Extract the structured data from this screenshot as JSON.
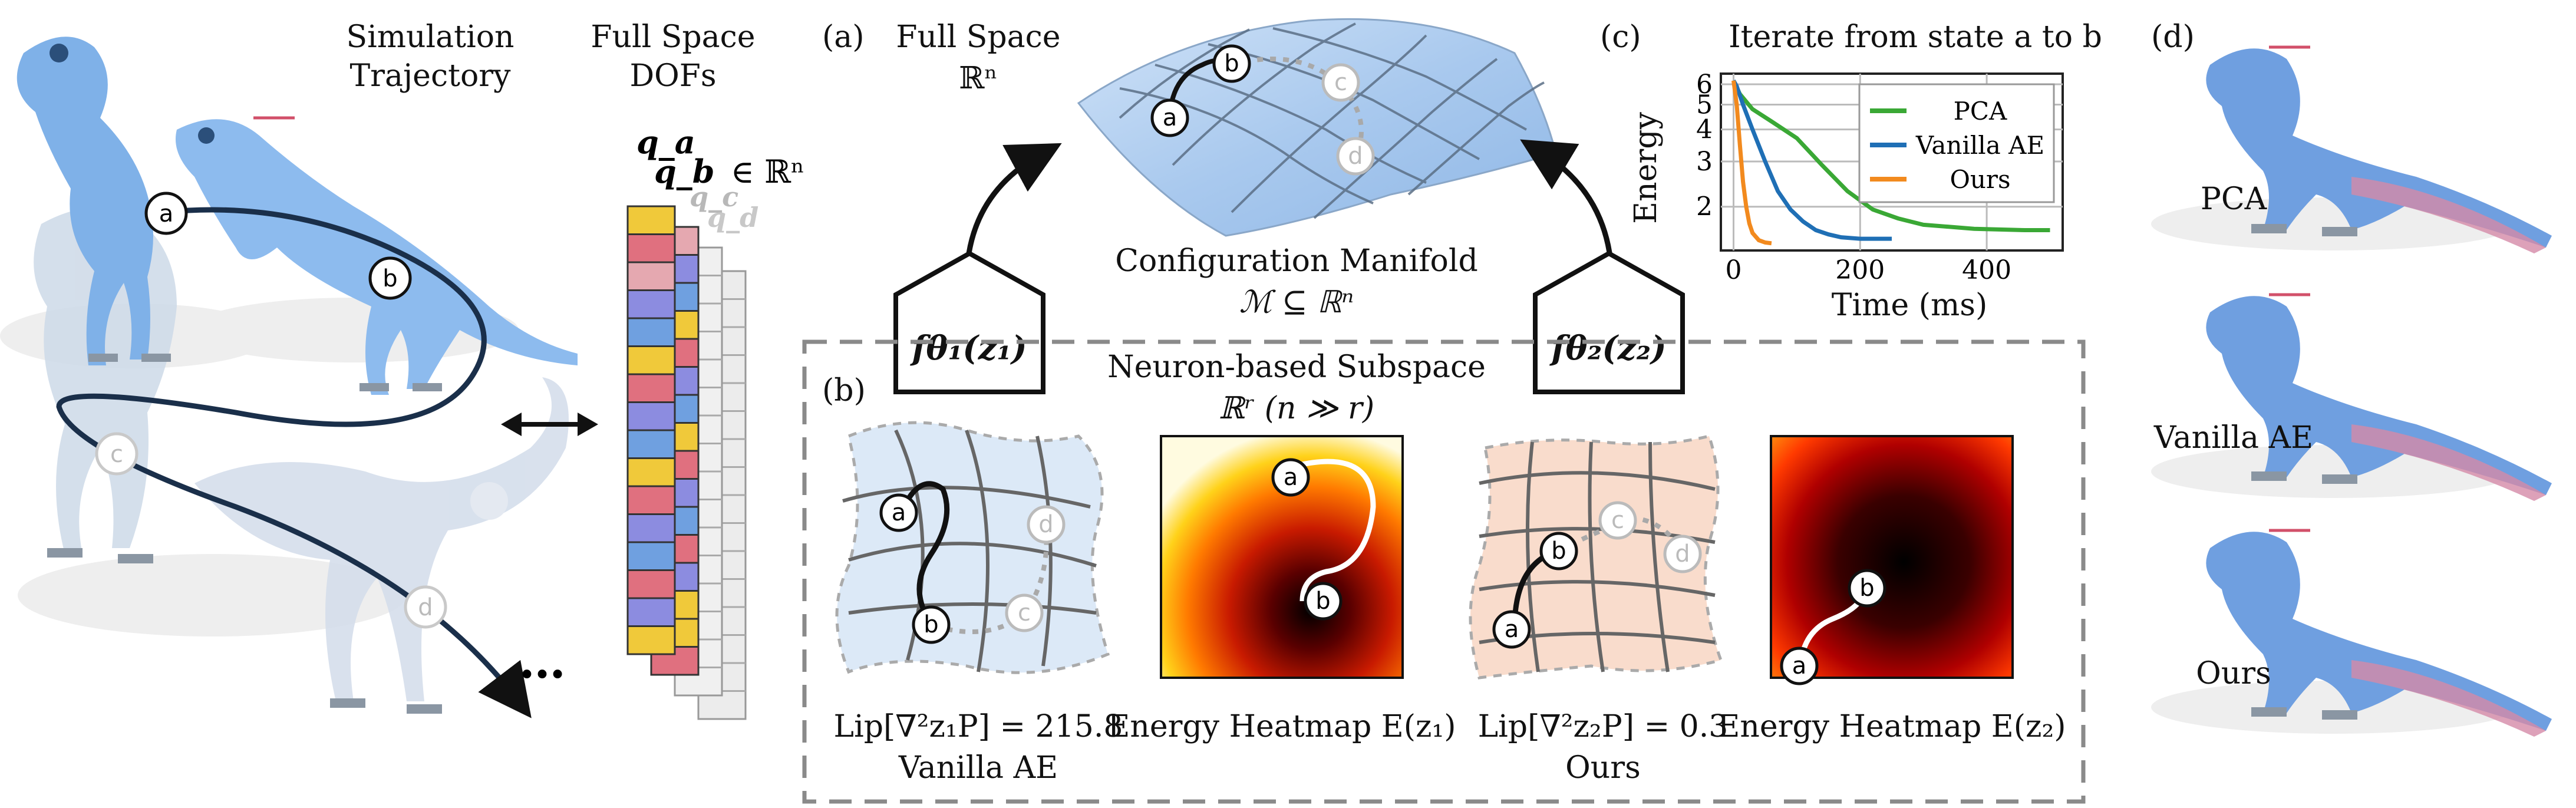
{
  "colors": {
    "dino_blue": "#7fb1e8",
    "dino_dark": "#4f86c8",
    "ghost": "#c9d6e6",
    "manifold": "#b9d4f2",
    "sub_blue": "#dce9f7",
    "sub_orange": "#f9dccc",
    "accent_blue": "#2aa6d9",
    "accent_orange": "#f08a1c",
    "pca": "#3aa835",
    "vanilla": "#1f6fb5",
    "ours": "#f28a1e",
    "dash_box": "#8a8a8a"
  },
  "left": {
    "sim_label": [
      "Simulation",
      "Trajectory"
    ],
    "dofs_label": [
      "Full Space",
      "DOFs"
    ],
    "q_labels": [
      "q_a",
      "q_b",
      "q_c",
      "q_d"
    ],
    "q_suffix": "∈ ℝⁿ",
    "nodes": [
      "a",
      "b",
      "c",
      "d"
    ],
    "ellipsis": "…"
  },
  "panel_a": {
    "tag": "(a)",
    "title": [
      "Full Space",
      "ℝⁿ"
    ],
    "manifold_label": "Configuration Manifold",
    "manifold_math": "ℳ ⊆ ℝⁿ",
    "nodes": [
      "a",
      "b",
      "c",
      "d"
    ],
    "decoder_left": "fθ₁(z₁)",
    "decoder_right": "fθ₂(z₂)"
  },
  "panel_b": {
    "tag": "(b)",
    "title": "Neuron-based Subspace",
    "subtitle": "ℝʳ (n ≫ r)",
    "vanilla_lip": "Lip[∇²z₁P] = 215.8",
    "vanilla_name": "Vanilla AE",
    "heat1_label": "Energy Heatmap E(z₁)",
    "ours_lip": "Lip[∇²z₂P] = 0.3",
    "ours_name": "Ours",
    "heat2_label": "Energy Heatmap E(z₂)",
    "nodes": [
      "a",
      "b",
      "c",
      "d"
    ]
  },
  "chart_data": {
    "type": "line",
    "title": "Iterate from state a to b",
    "xlabel": "Time (ms)",
    "ylabel": "Energy",
    "y_scale": "log",
    "x_ticks": [
      0,
      200,
      400
    ],
    "y_ticks": [
      2,
      3,
      4,
      5,
      6
    ],
    "xlim": [
      -20,
      520
    ],
    "ylim": [
      1.35,
      6.6
    ],
    "legend_position": "top-right",
    "series": [
      {
        "name": "PCA",
        "color": "#3aa835",
        "x": [
          0,
          10,
          30,
          60,
          100,
          140,
          180,
          220,
          260,
          300,
          340,
          380,
          420,
          460,
          500
        ],
        "y": [
          6.2,
          5.5,
          4.8,
          4.3,
          3.7,
          2.9,
          2.3,
          1.95,
          1.8,
          1.7,
          1.67,
          1.64,
          1.63,
          1.62,
          1.62
        ]
      },
      {
        "name": "Vanilla AE",
        "color": "#1f6fb5",
        "x": [
          0,
          5,
          15,
          30,
          50,
          70,
          90,
          110,
          130,
          150,
          170,
          200,
          230,
          250
        ],
        "y": [
          6.2,
          5.9,
          5.0,
          4.0,
          3.0,
          2.3,
          1.95,
          1.75,
          1.62,
          1.56,
          1.52,
          1.5,
          1.5,
          1.5
        ]
      },
      {
        "name": "Ours",
        "color": "#f28a1e",
        "x": [
          0,
          5,
          10,
          15,
          20,
          25,
          30,
          40,
          50,
          60
        ],
        "y": [
          6.2,
          5.0,
          3.5,
          2.5,
          2.0,
          1.72,
          1.58,
          1.48,
          1.45,
          1.44
        ]
      }
    ]
  },
  "panel_d": {
    "tag": "(d)",
    "labels": [
      "PCA",
      "Vanilla AE",
      "Ours"
    ]
  }
}
